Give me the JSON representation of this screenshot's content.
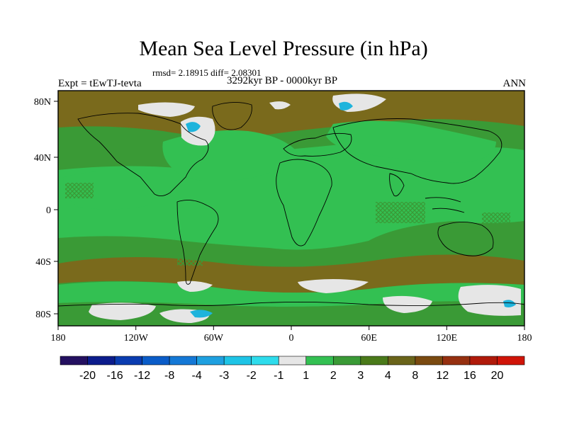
{
  "title": "Mean Sea Level Pressure (in hPa)",
  "stats_label": "rmsd= 2.18915 diff= 2.08301",
  "period_label": "3292kyr BP - 0000kyr BP",
  "experiment_label": "Expt = tEwTJ-tevta",
  "season_label": "ANN",
  "map": {
    "lon_ticks": [
      "180",
      "120W",
      "60W",
      "0",
      "60E",
      "120E",
      "180"
    ],
    "lat_ticks": [
      "80N",
      "40N",
      "0",
      "40S",
      "80S"
    ],
    "lon_range": [
      -180,
      180
    ],
    "lat_range": [
      -90,
      90
    ],
    "field_colors": {
      "dominant": "#7A6A1C",
      "moderate": "#3A9A36",
      "light": "#33C052",
      "neutral": "#E6E6E6",
      "negative": "#1EB4DC",
      "coastline": "#000000"
    }
  },
  "colorbar": {
    "colors": [
      "#241060",
      "#0C1C8C",
      "#0A3CB0",
      "#0A5CC8",
      "#1478D6",
      "#1EA0E0",
      "#1EC4E6",
      "#2EDCEC",
      "#E6E6E6",
      "#33C052",
      "#3A9A36",
      "#4A7A1A",
      "#6A641A",
      "#7A4A10",
      "#963010",
      "#B01A0A",
      "#D01408"
    ],
    "labels": [
      "-20",
      "-16",
      "-12",
      "-8",
      "-4",
      "-3",
      "-2",
      "-1",
      "1",
      "2",
      "3",
      "4",
      "8",
      "12",
      "16",
      "20"
    ]
  }
}
